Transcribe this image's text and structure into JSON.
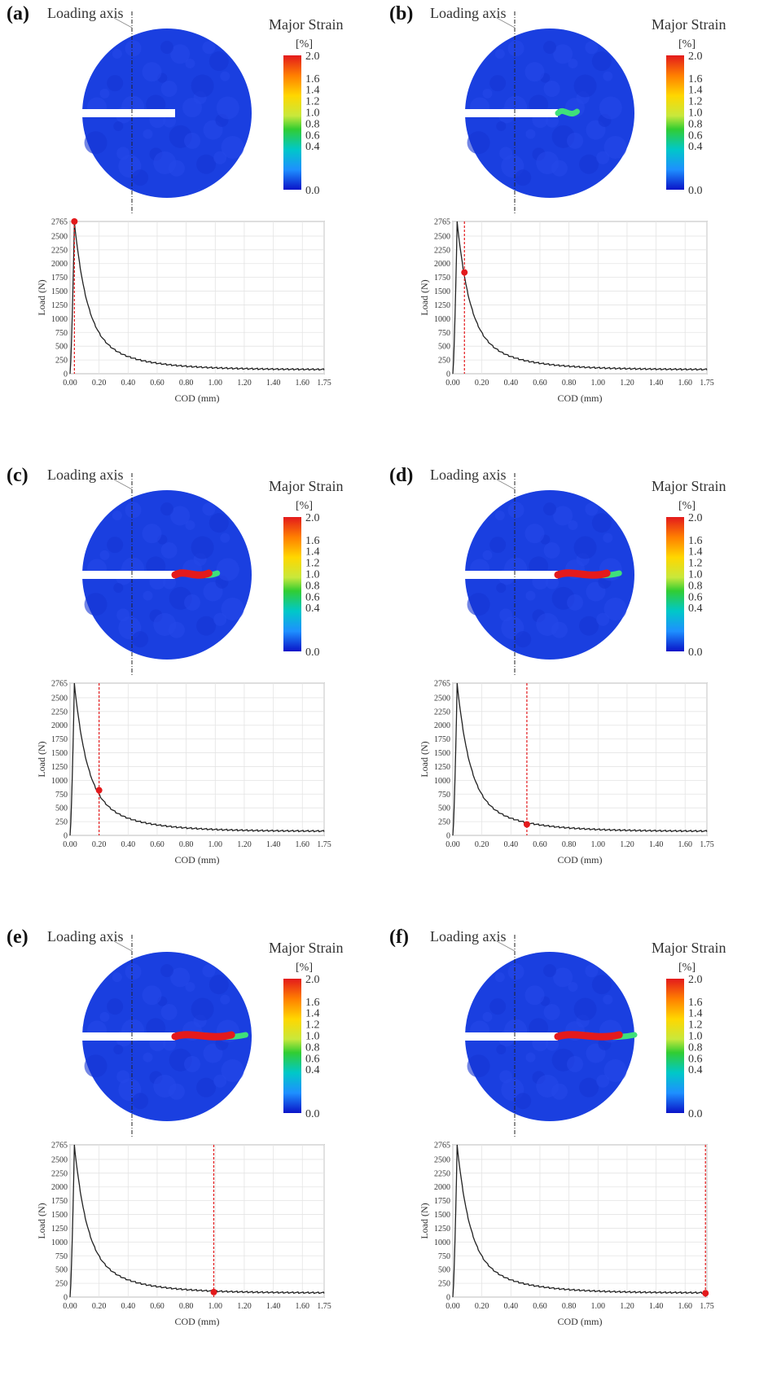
{
  "labels": {
    "loading_axis": "Loading axis",
    "major_strain": "Major Strain",
    "unit": "[%]",
    "colorbar_ticks": [
      "2.0",
      "1.6",
      "1.4",
      "1.2",
      "1.0",
      "0.8",
      "0.6",
      "0.4",
      "0.0"
    ]
  },
  "colors": {
    "field_blue": "#1a3fe0",
    "crack_red": "#e41a1c",
    "marker_red": "#e31a1c",
    "curve": "#222222"
  },
  "chart_data": [
    {
      "panel": "(a)",
      "type": "line",
      "xlabel": "COD (mm)",
      "ylabel": "Load (N)",
      "xlim": [
        0,
        1.75
      ],
      "ylim": [
        0,
        2765
      ],
      "x_ticks": [
        "0.00",
        "0.20",
        "0.40",
        "0.60",
        "0.80",
        "1.00",
        "1.20",
        "1.40",
        "1.60",
        "1.75"
      ],
      "y_ticks": [
        "0",
        "250",
        "500",
        "750",
        "1000",
        "1250",
        "1500",
        "1750",
        "2000",
        "2250",
        "2500",
        "2765"
      ],
      "marker": {
        "x": 0.03,
        "y": 2765
      },
      "crack_length": 0.0
    },
    {
      "panel": "(b)",
      "type": "line",
      "xlabel": "COD (mm)",
      "ylabel": "Load (N)",
      "xlim": [
        0,
        1.75
      ],
      "ylim": [
        0,
        2765
      ],
      "x_ticks": [
        "0.00",
        "0.20",
        "0.40",
        "0.60",
        "0.80",
        "1.00",
        "1.20",
        "1.40",
        "1.60",
        "1.75"
      ],
      "y_ticks": [
        "0",
        "250",
        "500",
        "750",
        "1000",
        "1250",
        "1500",
        "1750",
        "2000",
        "2250",
        "2500",
        "2765"
      ],
      "marker": {
        "x": 0.08,
        "y": 1840
      },
      "crack_length": 0.25
    },
    {
      "panel": "(c)",
      "type": "line",
      "xlabel": "COD (mm)",
      "ylabel": "Load (N)",
      "xlim": [
        0,
        1.75
      ],
      "ylim": [
        0,
        2765
      ],
      "x_ticks": [
        "0.00",
        "0.20",
        "0.40",
        "0.60",
        "0.80",
        "1.00",
        "1.20",
        "1.40",
        "1.60",
        "1.75"
      ],
      "y_ticks": [
        "0",
        "250",
        "500",
        "750",
        "1000",
        "1250",
        "1500",
        "1750",
        "2000",
        "2250",
        "2500",
        "2765"
      ],
      "marker": {
        "x": 0.2,
        "y": 820
      },
      "crack_length": 0.55
    },
    {
      "panel": "(d)",
      "type": "line",
      "xlabel": "COD (mm)",
      "ylabel": "Load (N)",
      "xlim": [
        0,
        1.75
      ],
      "ylim": [
        0,
        2765
      ],
      "x_ticks": [
        "0.00",
        "0.20",
        "0.40",
        "0.60",
        "0.80",
        "1.00",
        "1.20",
        "1.40",
        "1.60",
        "1.75"
      ],
      "y_ticks": [
        "0",
        "250",
        "500",
        "750",
        "1000",
        "1250",
        "1500",
        "1750",
        "2000",
        "2250",
        "2500",
        "2765"
      ],
      "marker": {
        "x": 0.51,
        "y": 200
      },
      "crack_length": 0.8
    },
    {
      "panel": "(e)",
      "type": "line",
      "xlabel": "COD (mm)",
      "ylabel": "Load (N)",
      "xlim": [
        0,
        1.75
      ],
      "ylim": [
        0,
        2765
      ],
      "x_ticks": [
        "0.00",
        "0.20",
        "0.40",
        "0.60",
        "0.80",
        "1.00",
        "1.20",
        "1.40",
        "1.60",
        "1.75"
      ],
      "y_ticks": [
        "0",
        "250",
        "500",
        "750",
        "1000",
        "1250",
        "1500",
        "1750",
        "2000",
        "2250",
        "2500",
        "2765"
      ],
      "marker": {
        "x": 0.99,
        "y": 90
      },
      "crack_length": 0.92
    },
    {
      "panel": "(f)",
      "type": "line",
      "xlabel": "COD (mm)",
      "ylabel": "Load (N)",
      "xlim": [
        0,
        1.75
      ],
      "ylim": [
        0,
        2765
      ],
      "x_ticks": [
        "0.00",
        "0.20",
        "0.40",
        "0.60",
        "0.80",
        "1.00",
        "1.20",
        "1.40",
        "1.60",
        "1.75"
      ],
      "y_ticks": [
        "0",
        "250",
        "500",
        "750",
        "1000",
        "1250",
        "1500",
        "1750",
        "2000",
        "2250",
        "2500",
        "2765"
      ],
      "marker": {
        "x": 1.74,
        "y": 70
      },
      "crack_length": 1.0
    }
  ]
}
